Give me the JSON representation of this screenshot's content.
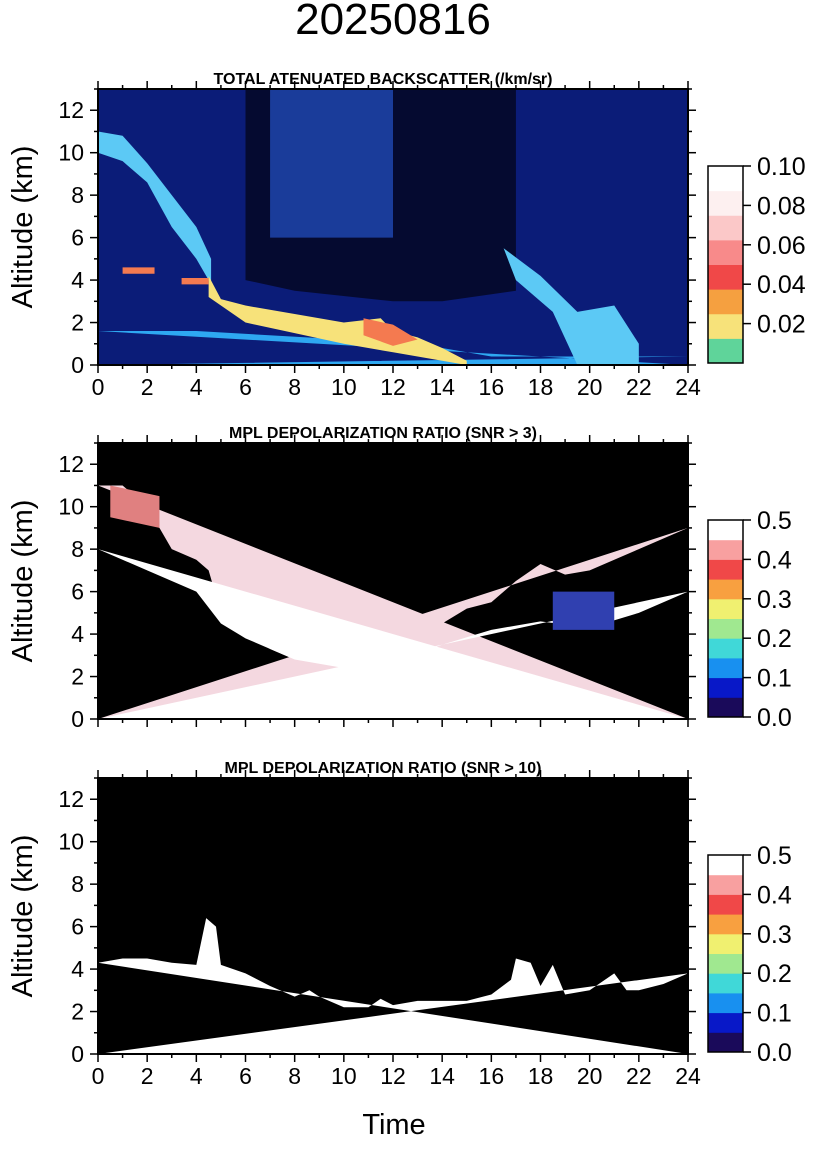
{
  "title": "20250816",
  "xlabel": "Time",
  "colors": {
    "background_clear_sky": "#0b1c78",
    "dark_region": "#050a30",
    "boundary_layer": "#2ea8f2",
    "aerosol_layer": "#f7e27a",
    "aerosol_core": "#f47a50",
    "cirrus": "#5cc9f5",
    "depol_high": "#ffffff",
    "depol_missing": "#000000"
  },
  "chart_data": [
    {
      "type": "heatmap",
      "title": "TOTAL ATENUATED BACKSCATTER (/km/sr)",
      "xlabel": "",
      "ylabel": "Altitude (km)",
      "xlim": [
        0,
        24
      ],
      "ylim": [
        0,
        13
      ],
      "xticks": [
        0,
        2,
        4,
        6,
        8,
        10,
        12,
        14,
        16,
        18,
        20,
        22,
        24
      ],
      "yticks": [
        0,
        2,
        4,
        6,
        8,
        10,
        12
      ],
      "show_xtick_labels": true,
      "colorbar": {
        "range": [
          0,
          0.1
        ],
        "ticks": [
          "0.02",
          "0.04",
          "0.06",
          "0.08",
          "0.10"
        ],
        "colormap": [
          "#5fd49a",
          "#f7e27a",
          "#f5a040",
          "#f04848",
          "#f88a8a",
          "#fbc8c8",
          "#fdf0f0",
          "#ffffff"
        ]
      },
      "features": {
        "boundary_layer_top_km": [
          [
            0,
            1.6
          ],
          [
            4,
            1.6
          ],
          [
            10,
            1.2
          ],
          [
            14,
            0.8
          ],
          [
            16,
            0.4
          ],
          [
            24,
            0.4
          ]
        ],
        "aerosol_layer": {
          "top_km": [
            [
              4.5,
              4.2
            ],
            [
              5,
              3.1
            ],
            [
              6,
              2.8
            ],
            [
              8,
              2.4
            ],
            [
              10,
              2.0
            ],
            [
              11.5,
              2.2
            ],
            [
              12,
              1.6
            ],
            [
              13,
              1.3
            ],
            [
              14,
              0.8
            ],
            [
              15,
              0.2
            ]
          ],
          "base_km": [
            [
              4.5,
              3.2
            ],
            [
              6,
              2.0
            ],
            [
              8,
              1.5
            ],
            [
              10,
              1.0
            ],
            [
              12,
              0.6
            ],
            [
              14,
              0.2
            ],
            [
              15,
              0
            ]
          ]
        },
        "cirrus_band": {
          "upper_km": [
            [
              0,
              11
            ],
            [
              1,
              10.8
            ],
            [
              2,
              9.5
            ],
            [
              3,
              8
            ],
            [
              4,
              6.5
            ],
            [
              4.6,
              5
            ]
          ],
          "lower_km": [
            [
              0,
              10
            ],
            [
              1,
              9.6
            ],
            [
              2,
              8.6
            ],
            [
              3,
              6.5
            ],
            [
              4,
              5
            ],
            [
              4.6,
              3.8
            ]
          ]
        },
        "evening_plume": {
          "upper_km": [
            [
              16.5,
              5.5
            ],
            [
              18,
              4.2
            ],
            [
              19.5,
              2.5
            ],
            [
              21,
              2.8
            ],
            [
              22,
              1
            ]
          ],
          "lower_km": [
            [
              17,
              4
            ],
            [
              18.5,
              2.5
            ],
            [
              19.5,
              0
            ],
            [
              22,
              0
            ]
          ]
        }
      }
    },
    {
      "type": "heatmap",
      "title": "MPL DEPOLARIZATION RATIO (SNR > 3)",
      "xlabel": "",
      "ylabel": "Altitude (km)",
      "xlim": [
        0,
        24
      ],
      "ylim": [
        0,
        13
      ],
      "xticks": [
        0,
        2,
        4,
        6,
        8,
        10,
        12,
        14,
        16,
        18,
        20,
        22,
        24
      ],
      "yticks": [
        0,
        2,
        4,
        6,
        8,
        10,
        12
      ],
      "show_xtick_labels": false,
      "colorbar": {
        "range": [
          0,
          0.5
        ],
        "ticks": [
          "0.0",
          "0.1",
          "0.2",
          "0.3",
          "0.4",
          "0.5"
        ],
        "colormap": [
          "#1a0a5a",
          "#0818c8",
          "#1890f0",
          "#40d8d8",
          "#a0e890",
          "#f0f070",
          "#f8a040",
          "#f04848",
          "#f8a0a0",
          "#ffffff"
        ]
      },
      "features": {
        "valid_signal_top_km": [
          [
            0,
            11
          ],
          [
            1,
            11
          ],
          [
            2,
            10
          ],
          [
            3,
            8
          ],
          [
            4,
            7.5
          ],
          [
            4.5,
            7
          ],
          [
            5,
            5
          ],
          [
            6,
            4
          ],
          [
            7,
            3.3
          ],
          [
            8,
            2.8
          ],
          [
            9,
            2.8
          ],
          [
            10,
            2.5
          ],
          [
            11,
            2.5
          ],
          [
            11.5,
            3.5
          ],
          [
            12,
            2.8
          ],
          [
            13,
            3
          ],
          [
            14,
            4.5
          ],
          [
            15,
            5.2
          ],
          [
            16,
            5.5
          ],
          [
            17,
            6.5
          ],
          [
            18,
            7.3
          ],
          [
            19,
            6.8
          ],
          [
            20,
            7
          ],
          [
            21,
            7.5
          ],
          [
            22,
            8
          ],
          [
            23,
            8.5
          ],
          [
            24,
            9
          ]
        ],
        "dense_high_depol_top_km": [
          [
            0,
            8
          ],
          [
            2,
            7
          ],
          [
            4,
            6
          ],
          [
            5,
            4.5
          ],
          [
            6,
            3.8
          ],
          [
            8,
            2.8
          ],
          [
            10,
            2.4
          ],
          [
            12,
            2.7
          ],
          [
            14,
            3.5
          ],
          [
            16,
            4.2
          ],
          [
            18,
            4.6
          ],
          [
            20,
            4.3
          ],
          [
            22,
            5
          ],
          [
            24,
            6
          ]
        ]
      }
    },
    {
      "type": "heatmap",
      "title": "MPL DEPOLARIZATION RATIO (SNR > 10)",
      "xlabel": "Time",
      "ylabel": "Altitude (km)",
      "xlim": [
        0,
        24
      ],
      "ylim": [
        0,
        13
      ],
      "xticks": [
        0,
        2,
        4,
        6,
        8,
        10,
        12,
        14,
        16,
        18,
        20,
        22,
        24
      ],
      "yticks": [
        0,
        2,
        4,
        6,
        8,
        10,
        12
      ],
      "show_xtick_labels": true,
      "colorbar": {
        "range": [
          0,
          0.5
        ],
        "ticks": [
          "0.0",
          "0.1",
          "0.2",
          "0.3",
          "0.4",
          "0.5"
        ],
        "colormap": [
          "#1a0a5a",
          "#0818c8",
          "#1890f0",
          "#40d8d8",
          "#a0e890",
          "#f0f070",
          "#f8a040",
          "#f04848",
          "#f8a0a0",
          "#ffffff"
        ]
      },
      "features": {
        "valid_signal_top_km": [
          [
            0,
            4.3
          ],
          [
            1,
            4.5
          ],
          [
            2,
            4.5
          ],
          [
            3,
            4.3
          ],
          [
            4,
            4.2
          ],
          [
            4.4,
            6.4
          ],
          [
            4.8,
            6
          ],
          [
            5,
            4.2
          ],
          [
            6,
            3.8
          ],
          [
            7,
            3.2
          ],
          [
            8,
            2.7
          ],
          [
            8.6,
            3
          ],
          [
            9,
            2.7
          ],
          [
            10,
            2.2
          ],
          [
            11,
            2.2
          ],
          [
            11.5,
            2.6
          ],
          [
            12,
            2.3
          ],
          [
            13,
            2.5
          ],
          [
            14,
            2.5
          ],
          [
            15,
            2.5
          ],
          [
            16,
            2.8
          ],
          [
            16.8,
            3.5
          ],
          [
            17,
            4.5
          ],
          [
            17.6,
            4.3
          ],
          [
            18,
            3.2
          ],
          [
            18.5,
            4.2
          ],
          [
            19,
            2.8
          ],
          [
            20,
            3
          ],
          [
            21,
            3.8
          ],
          [
            21.5,
            3
          ],
          [
            22,
            3
          ],
          [
            23,
            3.3
          ],
          [
            24,
            3.8
          ]
        ]
      }
    }
  ]
}
